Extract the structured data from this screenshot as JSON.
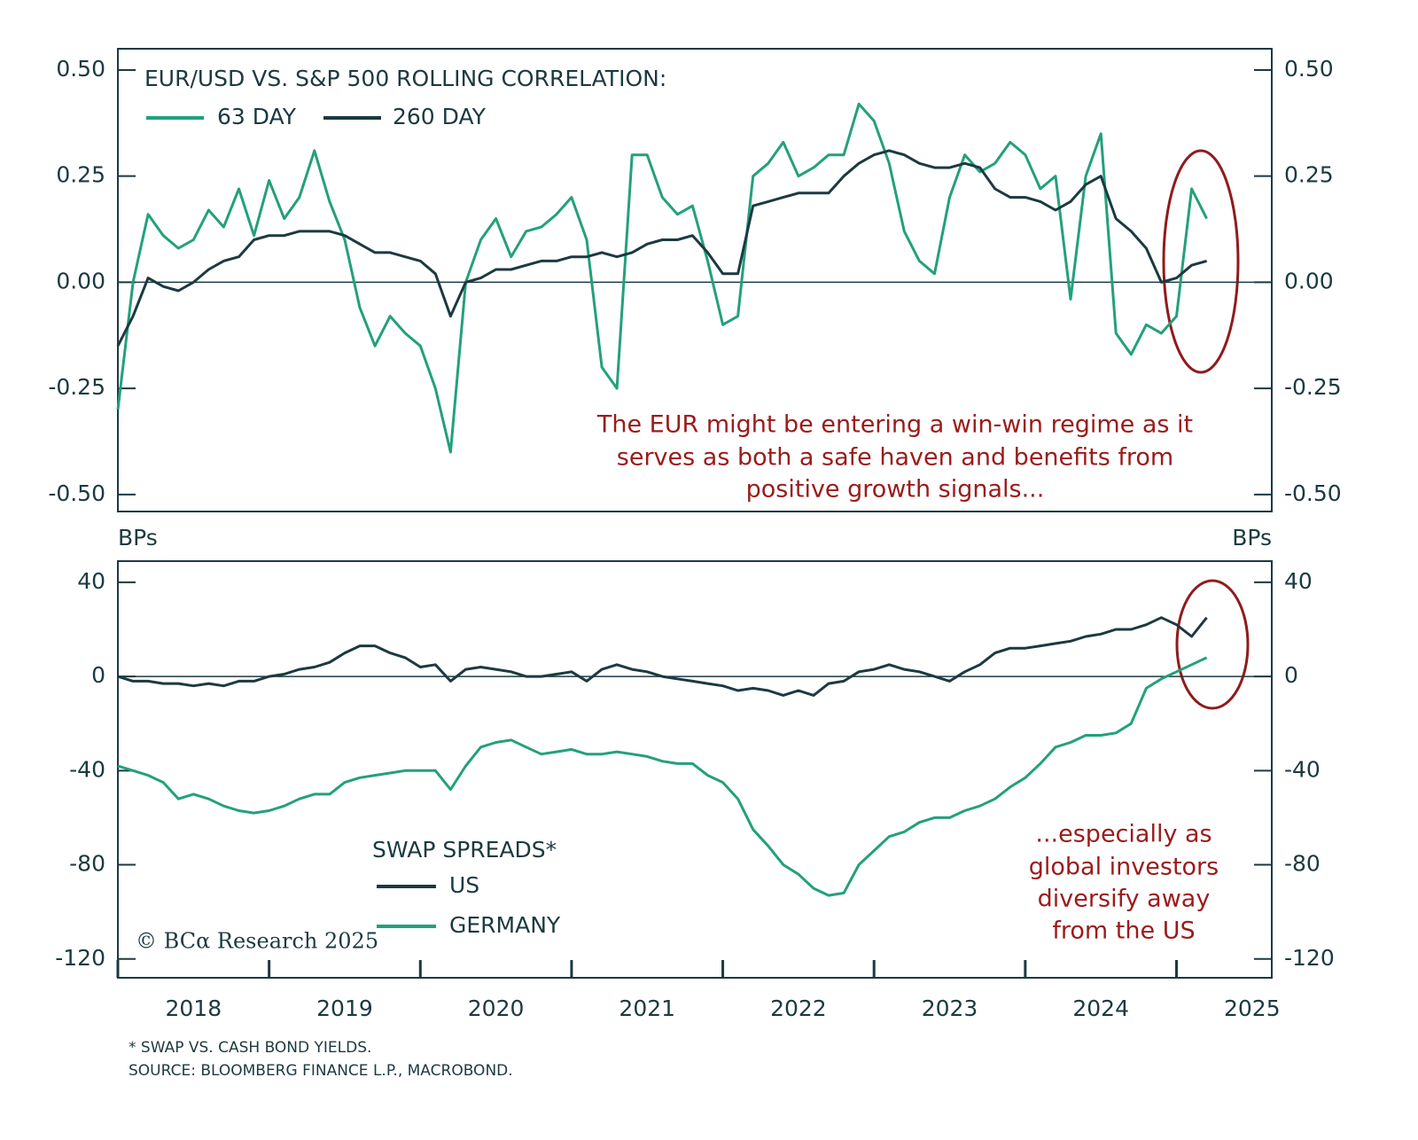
{
  "chart_data": [
    {
      "type": "line",
      "title": "EUR/USD VS. S&P 500 ROLLING CORRELATION:",
      "annotation": [
        "The EUR might be entering a win-win regime as it",
        "serves as both a safe haven and benefits from",
        "positive growth signals..."
      ],
      "x": [
        2018.0,
        2018.1,
        2018.2,
        2018.3,
        2018.4,
        2018.5,
        2018.6,
        2018.7,
        2018.8,
        2018.9,
        2019.0,
        2019.1,
        2019.2,
        2019.3,
        2019.4,
        2019.5,
        2019.6,
        2019.7,
        2019.8,
        2019.9,
        2020.0,
        2020.1,
        2020.2,
        2020.3,
        2020.4,
        2020.5,
        2020.6,
        2020.7,
        2020.8,
        2020.9,
        2021.0,
        2021.1,
        2021.2,
        2021.3,
        2021.4,
        2021.5,
        2021.6,
        2021.7,
        2021.8,
        2021.9,
        2022.0,
        2022.1,
        2022.2,
        2022.3,
        2022.4,
        2022.5,
        2022.6,
        2022.7,
        2022.8,
        2022.9,
        2023.0,
        2023.1,
        2023.2,
        2023.3,
        2023.4,
        2023.5,
        2023.6,
        2023.7,
        2023.8,
        2023.9,
        2024.0,
        2024.1,
        2024.2,
        2024.3,
        2024.4,
        2024.5,
        2024.6,
        2024.7,
        2024.8,
        2024.9,
        2025.0,
        2025.1,
        2025.2
      ],
      "series": [
        {
          "name": "63 DAY",
          "color": "#23a07c",
          "values": [
            -0.3,
            0.0,
            0.16,
            0.11,
            0.08,
            0.1,
            0.17,
            0.13,
            0.22,
            0.11,
            0.24,
            0.15,
            0.2,
            0.31,
            0.19,
            0.1,
            -0.06,
            -0.15,
            -0.08,
            -0.12,
            -0.15,
            -0.25,
            -0.4,
            0.0,
            0.1,
            0.15,
            0.06,
            0.12,
            0.13,
            0.16,
            0.2,
            0.1,
            -0.2,
            -0.25,
            0.3,
            0.3,
            0.2,
            0.16,
            0.18,
            0.05,
            -0.1,
            -0.08,
            0.25,
            0.28,
            0.33,
            0.25,
            0.27,
            0.3,
            0.3,
            0.42,
            0.38,
            0.28,
            0.12,
            0.05,
            0.02,
            0.2,
            0.3,
            0.26,
            0.28,
            0.33,
            0.3,
            0.22,
            0.25,
            -0.04,
            0.25,
            0.35,
            -0.12,
            -0.17,
            -0.1,
            -0.12,
            -0.08,
            0.22,
            0.15
          ]
        },
        {
          "name": "260 DAY",
          "color": "#1b3a40",
          "values": [
            -0.15,
            -0.08,
            0.01,
            -0.01,
            -0.02,
            0.0,
            0.03,
            0.05,
            0.06,
            0.1,
            0.11,
            0.11,
            0.12,
            0.12,
            0.12,
            0.11,
            0.09,
            0.07,
            0.07,
            0.06,
            0.05,
            0.02,
            -0.08,
            0.0,
            0.01,
            0.03,
            0.03,
            0.04,
            0.05,
            0.05,
            0.06,
            0.06,
            0.07,
            0.06,
            0.07,
            0.09,
            0.1,
            0.1,
            0.11,
            0.07,
            0.02,
            0.02,
            0.18,
            0.19,
            0.2,
            0.21,
            0.21,
            0.21,
            0.25,
            0.28,
            0.3,
            0.31,
            0.3,
            0.28,
            0.27,
            0.27,
            0.28,
            0.27,
            0.22,
            0.2,
            0.2,
            0.19,
            0.17,
            0.19,
            0.23,
            0.25,
            0.15,
            0.12,
            0.08,
            0.0,
            0.01,
            0.04,
            0.05
          ]
        }
      ],
      "xlim": [
        2018,
        2025.63
      ],
      "ylim": [
        -0.54,
        0.55
      ],
      "yticks": [
        {
          "value": 0.5,
          "label": "0.50"
        },
        0.25,
        {
          "value": 0,
          "label": "0.00"
        },
        -0.25,
        {
          "value": -0.5,
          "label": "-0.50"
        }
      ],
      "y2lim": [
        -0.54,
        0.55
      ],
      "y2ticks": [
        {
          "value": 0.5,
          "label": "0.50"
        },
        0.25,
        {
          "value": 0,
          "label": "0.00"
        },
        -0.25,
        {
          "value": -0.5,
          "label": "-0.50"
        }
      ],
      "zero_line": true
    },
    {
      "type": "line",
      "legend_title": "SWAP SPREADS*",
      "ylabel": "BPs",
      "y2label": "BPs",
      "annotation": [
        "...especially as",
        "global investors",
        "diversify away",
        "from the US"
      ],
      "watermark": "© BCα Research 2025",
      "x": [
        2018.0,
        2018.1,
        2018.2,
        2018.3,
        2018.4,
        2018.5,
        2018.6,
        2018.7,
        2018.8,
        2018.9,
        2019.0,
        2019.1,
        2019.2,
        2019.3,
        2019.4,
        2019.5,
        2019.6,
        2019.7,
        2019.8,
        2019.9,
        2020.0,
        2020.1,
        2020.2,
        2020.3,
        2020.4,
        2020.5,
        2020.6,
        2020.7,
        2020.8,
        2020.9,
        2021.0,
        2021.1,
        2021.2,
        2021.3,
        2021.4,
        2021.5,
        2021.6,
        2021.7,
        2021.8,
        2021.9,
        2022.0,
        2022.1,
        2022.2,
        2022.3,
        2022.4,
        2022.5,
        2022.6,
        2022.7,
        2022.8,
        2022.9,
        2023.0,
        2023.1,
        2023.2,
        2023.3,
        2023.4,
        2023.5,
        2023.6,
        2023.7,
        2023.8,
        2023.9,
        2024.0,
        2024.1,
        2024.2,
        2024.3,
        2024.4,
        2024.5,
        2024.6,
        2024.7,
        2024.8,
        2024.9,
        2025.0,
        2025.1,
        2025.2
      ],
      "series": [
        {
          "name": "US",
          "color": "#1b3a40",
          "values": [
            0,
            -2,
            -2,
            -3,
            -3,
            -4,
            -3,
            -4,
            -2,
            -2,
            0,
            1,
            3,
            4,
            6,
            10,
            13,
            13,
            10,
            8,
            4,
            5,
            -2,
            3,
            4,
            3,
            2,
            0,
            0,
            1,
            2,
            -2,
            3,
            5,
            3,
            2,
            0,
            -1,
            -2,
            -3,
            -4,
            -6,
            -5,
            -6,
            -8,
            -6,
            -8,
            -3,
            -2,
            2,
            3,
            5,
            3,
            2,
            0,
            -2,
            2,
            5,
            10,
            12,
            12,
            13,
            14,
            15,
            17,
            18,
            20,
            20,
            22,
            25,
            22,
            17,
            25
          ]
        },
        {
          "name": "GERMANY",
          "color": "#23a07c",
          "values": [
            -38,
            -40,
            -42,
            -45,
            -52,
            -50,
            -52,
            -55,
            -57,
            -58,
            -57,
            -55,
            -52,
            -50,
            -50,
            -45,
            -43,
            -42,
            -41,
            -40,
            -40,
            -40,
            -48,
            -38,
            -30,
            -28,
            -27,
            -30,
            -33,
            -32,
            -31,
            -33,
            -33,
            -32,
            -33,
            -34,
            -36,
            -37,
            -37,
            -42,
            -45,
            -52,
            -65,
            -72,
            -80,
            -84,
            -90,
            -93,
            -92,
            -80,
            -74,
            -68,
            -66,
            -62,
            -60,
            -60,
            -57,
            -55,
            -52,
            -47,
            -43,
            -37,
            -30,
            -28,
            -25,
            -25,
            -24,
            -20,
            -5,
            -1,
            2,
            5,
            8
          ]
        }
      ],
      "xlim": [
        2018,
        2025.63
      ],
      "xticks": [
        2018,
        2019,
        2020,
        2021,
        2022,
        2023,
        2024,
        2025
      ],
      "ylim": [
        -128,
        49
      ],
      "yticks": [
        40,
        0,
        -40,
        -80,
        -120
      ],
      "y2lim": [
        -128,
        49
      ],
      "y2ticks": [
        40,
        0,
        -40,
        -80,
        -120
      ],
      "zero_line": true
    }
  ],
  "notes": [
    "* SWAP VS. CASH BOND YIELDS.",
    "SOURCE: BLOOMBERG FINANCE L.P., MACROBOND."
  ]
}
